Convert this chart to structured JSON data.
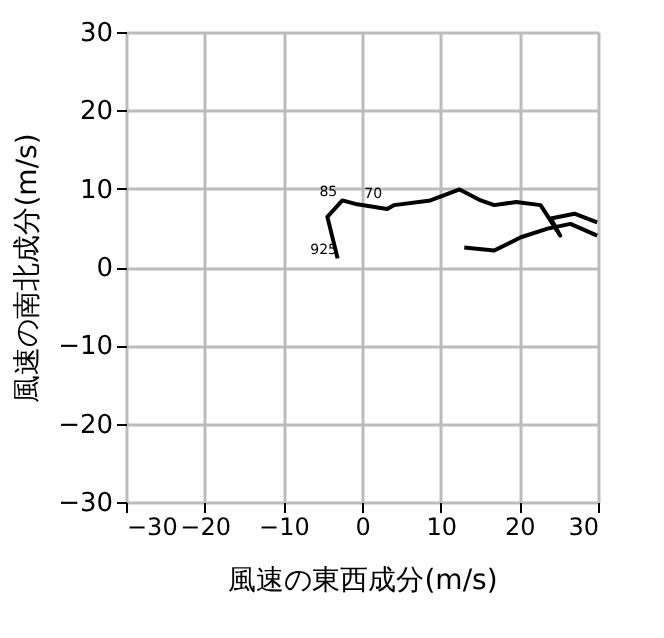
{
  "chart_data": {
    "type": "line",
    "xlabel": "風速の東西成分(m/s)",
    "ylabel": "風速の南北成分(m/s)",
    "xlim": [
      -30,
      30
    ],
    "ylim": [
      -30,
      30
    ],
    "xticks": [
      -30,
      -20,
      -10,
      0,
      10,
      20,
      30
    ],
    "yticks": [
      -30,
      -20,
      -10,
      0,
      10,
      20,
      30
    ],
    "grid": true,
    "marker": "none",
    "line_style": "solid",
    "series": [
      {
        "color": "#000000",
        "x": [
          -3.1,
          -4.4,
          -2.5,
          -0.6,
          3.2,
          4.1,
          8.7,
          12.4,
          15.1,
          16.8,
          19.6,
          22.7,
          25.2,
          24.0,
          27.0,
          29.9
        ],
        "values": [
          1.1,
          6.4,
          8.5,
          8.0,
          7.4,
          7.9,
          8.5,
          9.9,
          8.5,
          7.9,
          8.3,
          7.9,
          4.0,
          6.2,
          6.8,
          5.7
        ]
      },
      {
        "color": "#000000",
        "x": [
          29.9,
          26.5,
          23.6,
          20.2,
          16.8,
          13.0
        ],
        "values": [
          4.0,
          5.5,
          4.9,
          3.8,
          2.1,
          2.5
        ]
      }
    ],
    "annotations": [
      {
        "text": "925",
        "x": -3.1,
        "y": 1.1
      },
      {
        "text": "85",
        "x": -2.5,
        "y": 8.5
      },
      {
        "text": "70",
        "x": 3.2,
        "y": 8.3
      }
    ]
  }
}
